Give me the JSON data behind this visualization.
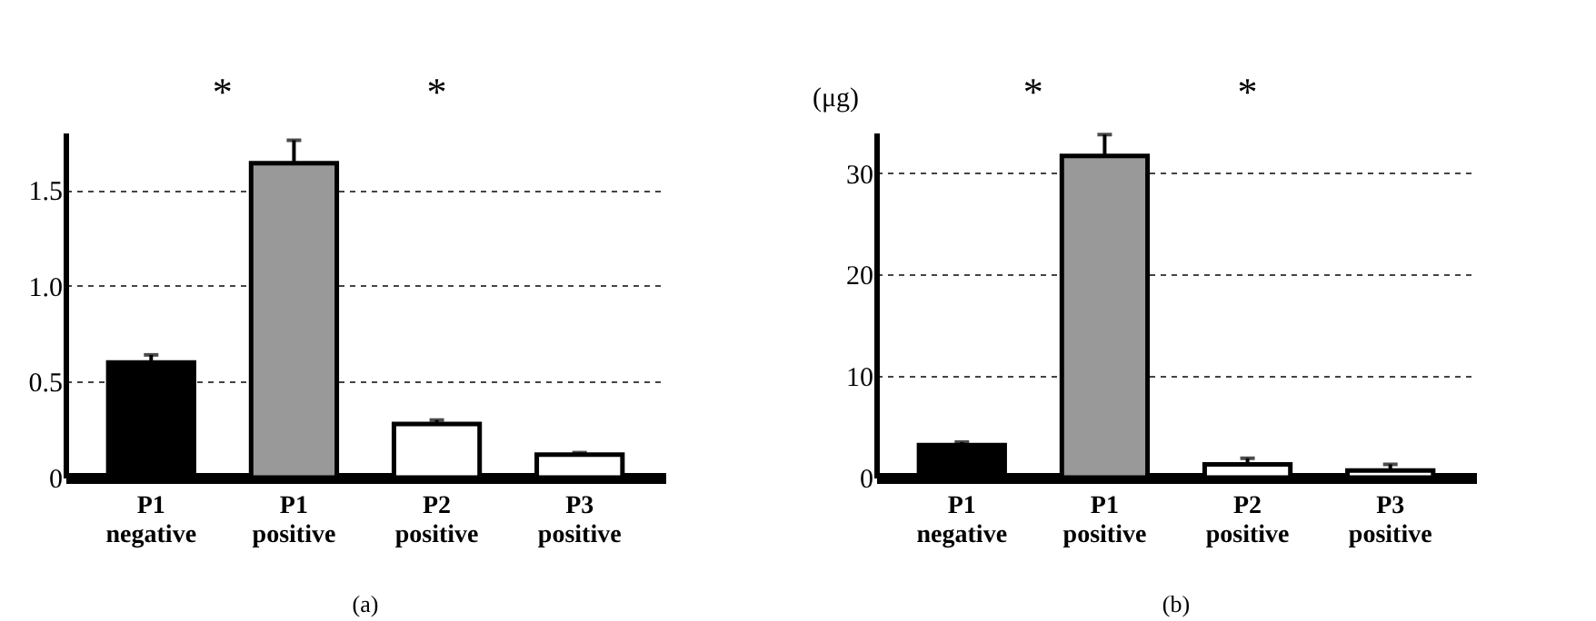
{
  "chart_data": [
    {
      "type": "bar",
      "categories": [
        "P1 negative",
        "P1 positive",
        "P2 positive",
        "P3 positive"
      ],
      "values": [
        0.6,
        1.64,
        0.28,
        0.12
      ],
      "colors": [
        "#000000",
        "#999999",
        "#ffffff",
        "#ffffff"
      ],
      "errors": [
        [
          0.6,
          0.64
        ],
        [
          1.64,
          1.76
        ],
        [
          0.28,
          0.3
        ],
        [
          0.12,
          0.13
        ]
      ],
      "ylim": [
        0,
        1.8
      ],
      "yticks": [
        0,
        {
          "value": 0.5,
          "label": "0.5"
        },
        {
          "value": 1,
          "label": "1.0"
        },
        1.5
      ],
      "grid": "y",
      "line_style": "dashed",
      "annotations": [
        "*",
        "*",
        "(a)"
      ]
    },
    {
      "type": "bar",
      "categories": [
        "P1 negative",
        "P1 positive",
        "P2 positive",
        "P3 positive"
      ],
      "values": [
        3.2,
        31.7,
        1.3,
        0.7
      ],
      "colors": [
        "#000000",
        "#999999",
        "#ffffff",
        "#ffffff"
      ],
      "errors": [
        [
          3.2,
          3.5
        ],
        [
          31.7,
          33.8
        ],
        [
          1.3,
          1.9
        ],
        [
          0.7,
          1.3
        ]
      ],
      "ylim": [
        0,
        34
      ],
      "yticks": [
        0,
        10,
        20,
        30
      ],
      "ylabel": "(μg)",
      "grid": "y",
      "line_style": "dashed",
      "annotations": [
        "*",
        "*",
        "(b)"
      ]
    }
  ]
}
